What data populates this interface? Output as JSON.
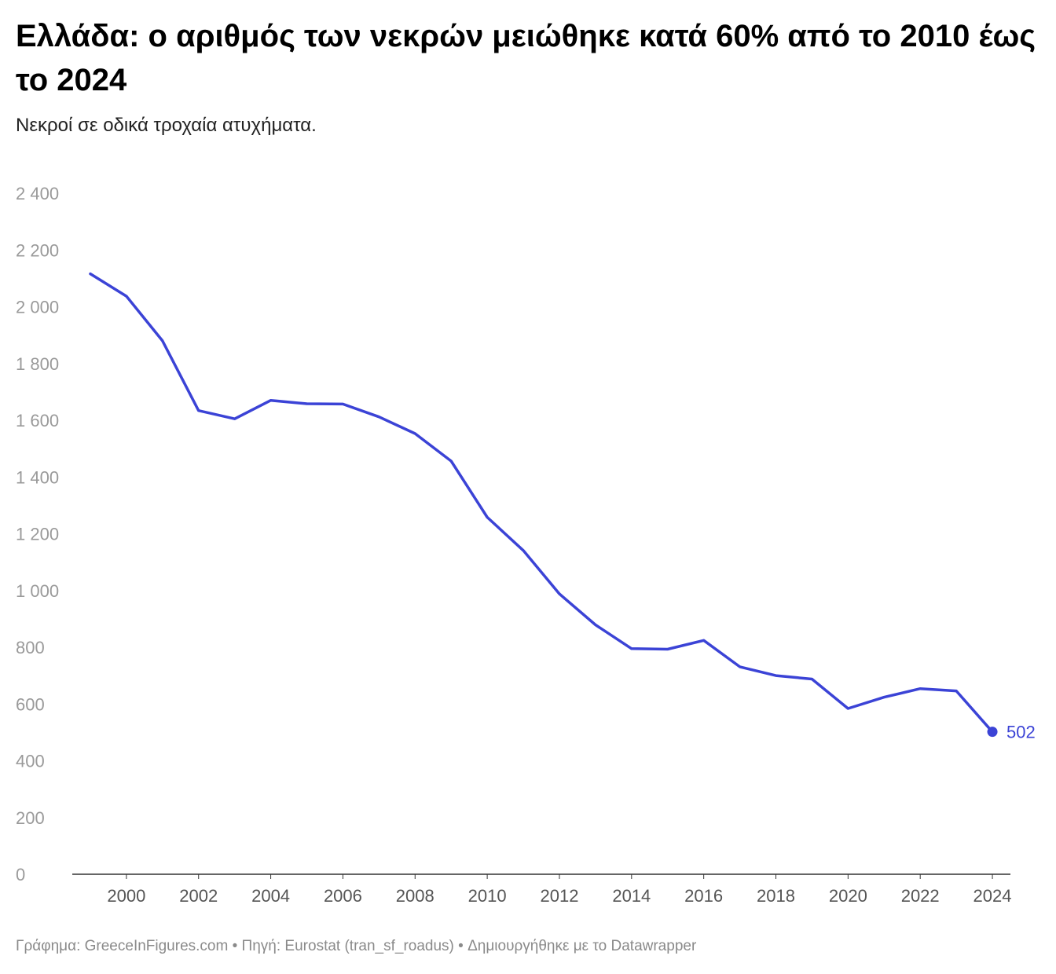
{
  "header": {
    "title": "Ελλάδα: ο αριθμός των νεκρών μειώθηκε κατά 60% από το 2010 έως το 2024",
    "subtitle": "Νεκροί σε οδικά τροχαία ατυχήματα."
  },
  "chart_data": {
    "type": "line",
    "title": "Ελλάδα: ο αριθμός των νεκρών μειώθηκε κατά 60% από το 2010 έως το 2024",
    "subtitle": "Νεκροί σε οδικά τροχαία ατυχήματα.",
    "xlabel": "",
    "ylabel": "",
    "ylim": [
      0,
      2400
    ],
    "yticks": [
      0,
      200,
      400,
      600,
      800,
      1000,
      1200,
      1400,
      1600,
      1800,
      2000,
      2200,
      2400
    ],
    "ytick_labels": [
      "0",
      "200",
      "400",
      "600",
      "800",
      "1 000",
      "1 200",
      "1 400",
      "1 600",
      "1 800",
      "2 000",
      "2 200",
      "2 400"
    ],
    "xticks": [
      2000,
      2002,
      2004,
      2006,
      2008,
      2010,
      2012,
      2014,
      2016,
      2018,
      2020,
      2022,
      2024
    ],
    "xtick_labels": [
      "2000",
      "2002",
      "2004",
      "2006",
      "2008",
      "2010",
      "2012",
      "2014",
      "2016",
      "2018",
      "2020",
      "2022",
      "2024"
    ],
    "grid": "horizontal",
    "series": [
      {
        "name": "Νεκροί",
        "color": "#3b43d6",
        "x": [
          1999,
          2000,
          2001,
          2002,
          2003,
          2004,
          2005,
          2006,
          2007,
          2008,
          2009,
          2010,
          2011,
          2012,
          2013,
          2014,
          2015,
          2016,
          2017,
          2018,
          2019,
          2020,
          2021,
          2022,
          2023,
          2024
        ],
        "values": [
          2116,
          2037,
          1880,
          1634,
          1605,
          1670,
          1658,
          1657,
          1612,
          1553,
          1456,
          1258,
          1141,
          988,
          879,
          795,
          793,
          824,
          731,
          700,
          688,
          584,
          624,
          654,
          646,
          502
        ]
      }
    ],
    "end_label": "502"
  },
  "footer": {
    "credit": "Γράφημα: GreeceInFigures.com • Πηγή: Eurostat (tran_sf_roadus) • Δημιουργήθηκε με το Datawrapper"
  }
}
